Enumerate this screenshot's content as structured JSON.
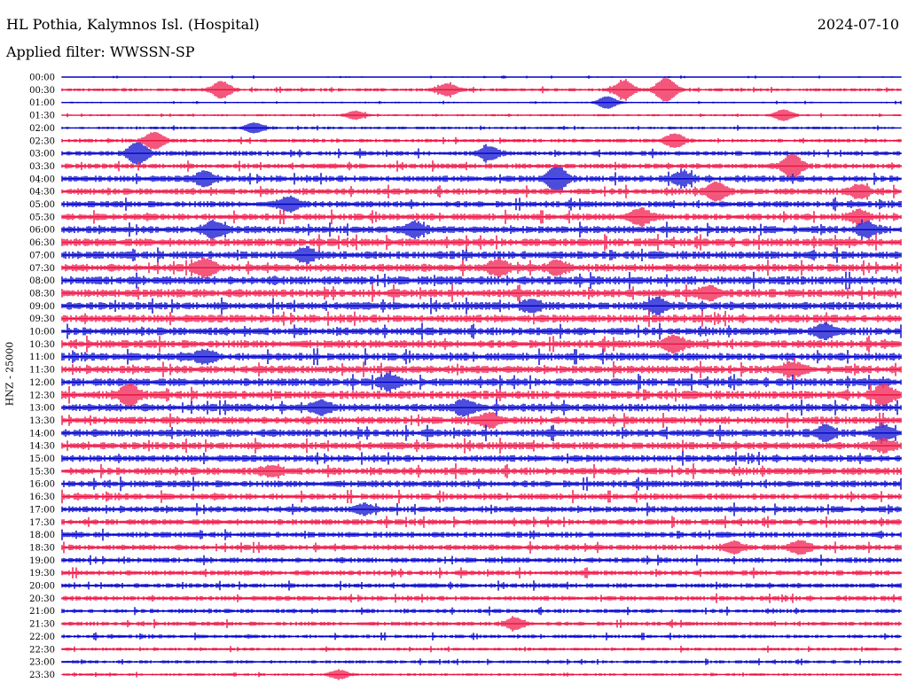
{
  "header": {
    "station": "HL Pothia, Kalymnos Isl. (Hospital)",
    "date": "2024-07-10",
    "filter": "Applied filter: WWSSN-SP"
  },
  "y_axis_label": "HNZ - 25000",
  "colors": {
    "even_trace": "#0000cc",
    "odd_trace": "#ee1144"
  },
  "chart_data": {
    "type": "line",
    "title": "",
    "ylabel": "HNZ - 25000",
    "trace_labels": [
      "00:00",
      "00:30",
      "01:00",
      "01:30",
      "02:00",
      "02:30",
      "03:00",
      "03:30",
      "04:00",
      "04:30",
      "05:00",
      "05:30",
      "06:00",
      "06:30",
      "07:00",
      "07:30",
      "08:00",
      "08:30",
      "09:00",
      "09:30",
      "10:00",
      "10:30",
      "11:00",
      "11:30",
      "12:00",
      "12:30",
      "13:00",
      "13:30",
      "14:00",
      "14:30",
      "15:00",
      "15:30",
      "16:00",
      "16:30",
      "17:00",
      "17:30",
      "18:00",
      "18:30",
      "19:00",
      "19:30",
      "20:00",
      "20:30",
      "21:00",
      "21:30",
      "22:00",
      "22:30",
      "23:00",
      "23:30"
    ],
    "trace_noise_level": [
      0.15,
      0.3,
      0.15,
      0.2,
      0.25,
      0.35,
      0.45,
      0.5,
      0.6,
      0.6,
      0.6,
      0.65,
      0.7,
      0.75,
      0.75,
      0.75,
      0.8,
      0.8,
      0.75,
      0.75,
      0.75,
      0.75,
      0.75,
      0.75,
      0.75,
      0.8,
      0.75,
      0.7,
      0.75,
      0.7,
      0.65,
      0.7,
      0.65,
      0.6,
      0.6,
      0.55,
      0.55,
      0.55,
      0.5,
      0.5,
      0.45,
      0.45,
      0.4,
      0.4,
      0.35,
      0.3,
      0.3,
      0.25
    ],
    "events": [
      {
        "trace": "00:30",
        "t": 0.19,
        "amp": 2.0
      },
      {
        "trace": "00:30",
        "t": 0.46,
        "amp": 1.4
      },
      {
        "trace": "00:30",
        "t": 0.67,
        "amp": 2.2
      },
      {
        "trace": "00:30",
        "t": 0.72,
        "amp": 3.0
      },
      {
        "trace": "01:00",
        "t": 0.65,
        "amp": 1.5
      },
      {
        "trace": "01:30",
        "t": 0.35,
        "amp": 1.0
      },
      {
        "trace": "01:30",
        "t": 0.86,
        "amp": 1.3
      },
      {
        "trace": "02:00",
        "t": 0.23,
        "amp": 1.2
      },
      {
        "trace": "02:30",
        "t": 0.11,
        "amp": 2.0
      },
      {
        "trace": "02:30",
        "t": 0.73,
        "amp": 1.6
      },
      {
        "trace": "03:00",
        "t": 0.09,
        "amp": 2.6
      },
      {
        "trace": "03:00",
        "t": 0.51,
        "amp": 1.4
      },
      {
        "trace": "03:30",
        "t": 0.87,
        "amp": 2.8
      },
      {
        "trace": "04:00",
        "t": 0.59,
        "amp": 3.0
      },
      {
        "trace": "04:00",
        "t": 0.17,
        "amp": 1.5
      },
      {
        "trace": "04:00",
        "t": 0.74,
        "amp": 1.4
      },
      {
        "trace": "04:30",
        "t": 0.78,
        "amp": 2.0
      },
      {
        "trace": "04:30",
        "t": 0.95,
        "amp": 1.5
      },
      {
        "trace": "05:00",
        "t": 0.27,
        "amp": 1.6
      },
      {
        "trace": "05:30",
        "t": 0.69,
        "amp": 1.8
      },
      {
        "trace": "05:30",
        "t": 0.95,
        "amp": 1.4
      },
      {
        "trace": "06:00",
        "t": 0.18,
        "amp": 1.8
      },
      {
        "trace": "06:00",
        "t": 0.42,
        "amp": 1.6
      },
      {
        "trace": "06:00",
        "t": 0.96,
        "amp": 1.5
      },
      {
        "trace": "07:00",
        "t": 0.29,
        "amp": 1.5
      },
      {
        "trace": "07:30",
        "t": 0.17,
        "amp": 1.8
      },
      {
        "trace": "07:30",
        "t": 0.52,
        "amp": 1.6
      },
      {
        "trace": "07:30",
        "t": 0.59,
        "amp": 1.4
      },
      {
        "trace": "08:30",
        "t": 0.77,
        "amp": 1.4
      },
      {
        "trace": "09:00",
        "t": 0.71,
        "amp": 1.5
      },
      {
        "trace": "09:00",
        "t": 0.56,
        "amp": 1.2
      },
      {
        "trace": "10:00",
        "t": 0.91,
        "amp": 1.4
      },
      {
        "trace": "10:30",
        "t": 0.73,
        "amp": 1.8
      },
      {
        "trace": "11:00",
        "t": 0.17,
        "amp": 1.4
      },
      {
        "trace": "11:30",
        "t": 0.87,
        "amp": 1.5
      },
      {
        "trace": "12:00",
        "t": 0.39,
        "amp": 1.5
      },
      {
        "trace": "12:30",
        "t": 0.08,
        "amp": 2.2
      },
      {
        "trace": "12:30",
        "t": 0.98,
        "amp": 2.2
      },
      {
        "trace": "13:00",
        "t": 0.48,
        "amp": 1.6
      },
      {
        "trace": "13:00",
        "t": 0.31,
        "amp": 1.4
      },
      {
        "trace": "13:30",
        "t": 0.51,
        "amp": 1.4
      },
      {
        "trace": "14:00",
        "t": 0.91,
        "amp": 1.5
      },
      {
        "trace": "14:00",
        "t": 0.98,
        "amp": 1.6
      },
      {
        "trace": "14:30",
        "t": 0.98,
        "amp": 1.2
      },
      {
        "trace": "15:30",
        "t": 0.25,
        "amp": 1.0
      },
      {
        "trace": "17:00",
        "t": 0.36,
        "amp": 1.0
      },
      {
        "trace": "18:30",
        "t": 0.8,
        "amp": 1.2
      },
      {
        "trace": "18:30",
        "t": 0.88,
        "amp": 1.4
      },
      {
        "trace": "21:30",
        "t": 0.54,
        "amp": 1.3
      },
      {
        "trace": "23:30",
        "t": 0.33,
        "amp": 1.0
      }
    ]
  }
}
